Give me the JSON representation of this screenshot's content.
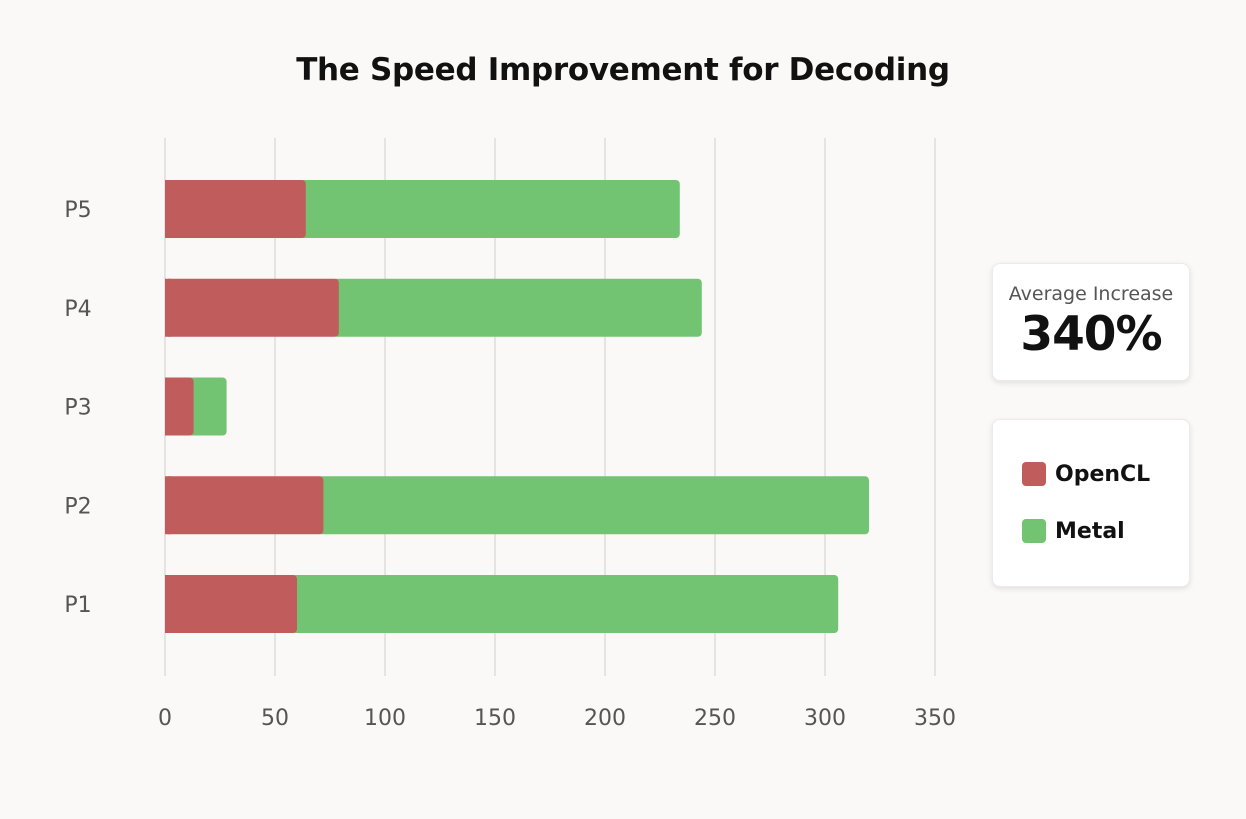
{
  "chart_data": {
    "type": "bar",
    "orientation": "horizontal",
    "stacked": true,
    "title": "The Speed Improvement for Decoding",
    "categories": [
      "P5",
      "P4",
      "P3",
      "P2",
      "P1"
    ],
    "series": [
      {
        "name": "OpenCL",
        "color": "#c05c5c",
        "values": [
          64,
          79,
          13,
          72,
          60
        ]
      },
      {
        "name": "Metal",
        "color": "#72c472",
        "values": [
          170,
          165,
          15,
          248,
          246
        ]
      }
    ],
    "xlim": [
      0,
      350
    ],
    "xticks": [
      "0",
      "50",
      "100",
      "150",
      "200",
      "250",
      "300",
      "350"
    ],
    "grid": true,
    "legend": "right"
  },
  "stat": {
    "label": "Average Increase",
    "value": "340%"
  },
  "legend": {
    "opencl_label": "OpenCL",
    "metal_label": "Metal",
    "opencl_color": "#c05c5c",
    "metal_color": "#72c472"
  }
}
